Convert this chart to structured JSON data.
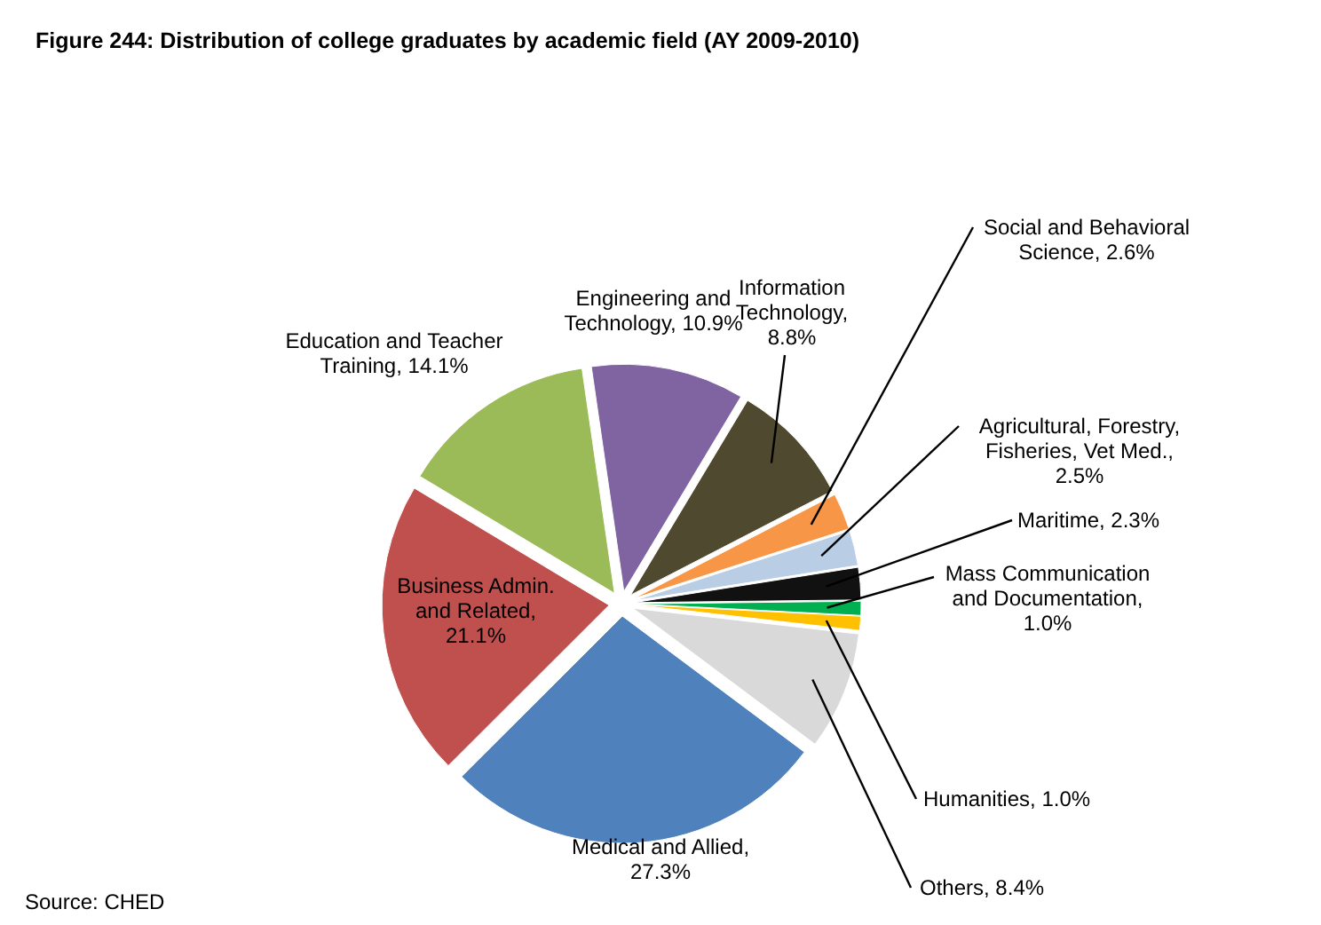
{
  "chart_data": {
    "type": "pie",
    "title": "Figure 244: Distribution of college graduates by academic field (AY 2009-2010)",
    "categories": [
      "Information Technology, 8.8%",
      "Social and Behavioral Science, 2.6%",
      "Agricultural, Forestry, Fisheries, Vet Med., 2.5%",
      "Maritime, 2.3%",
      "Mass Communication and Documentation, 1.0%",
      "Humanities, 1.0%",
      "Others, 8.4%",
      "Medical and Allied, 27.3%",
      "Business Admin. and Related, 21.1%",
      "Education and Teacher Training, 14.1%",
      "Engineering and Technology, 10.9%"
    ],
    "values": [
      8.8,
      2.6,
      2.5,
      2.3,
      1.0,
      1.0,
      8.4,
      27.3,
      21.1,
      14.1,
      10.9
    ],
    "colors": [
      "#4f4a2f",
      "#f79646",
      "#b9cde5",
      "#111111",
      "#00b050",
      "#ffc000",
      "#d9d9d9",
      "#4f81bd",
      "#c0504d",
      "#9bbb59",
      "#8064a2"
    ],
    "annotations": [
      "Source: CHED"
    ]
  }
}
